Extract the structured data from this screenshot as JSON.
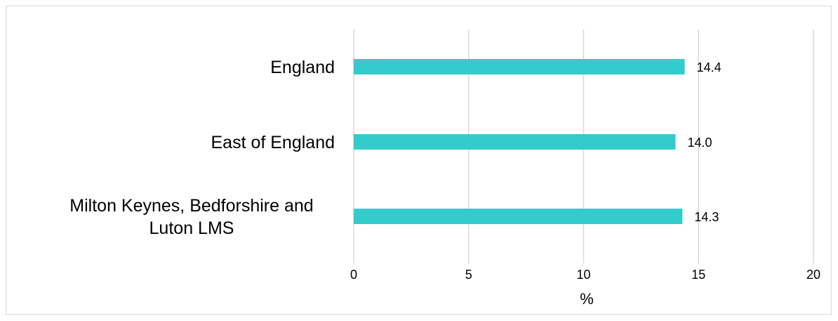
{
  "chart_data": {
    "type": "bar",
    "orientation": "horizontal",
    "categories": [
      "England",
      "East of England",
      "Milton Keynes, Bedforshire and Luton LMS"
    ],
    "category_lines": [
      [
        "England"
      ],
      [
        "East of England"
      ],
      [
        "Milton Keynes, Bedforshire and",
        "Luton LMS"
      ]
    ],
    "values": [
      14.4,
      14.0,
      14.3
    ],
    "value_labels": [
      "14.4",
      "14.0",
      "14.3"
    ],
    "xlabel": "%",
    "ylabel": "",
    "xlim": [
      0,
      20
    ],
    "xticks": [
      "0",
      "5",
      "10",
      "15",
      "20"
    ],
    "grid": true,
    "legend": "none",
    "bar_color": "#33CCCC"
  }
}
